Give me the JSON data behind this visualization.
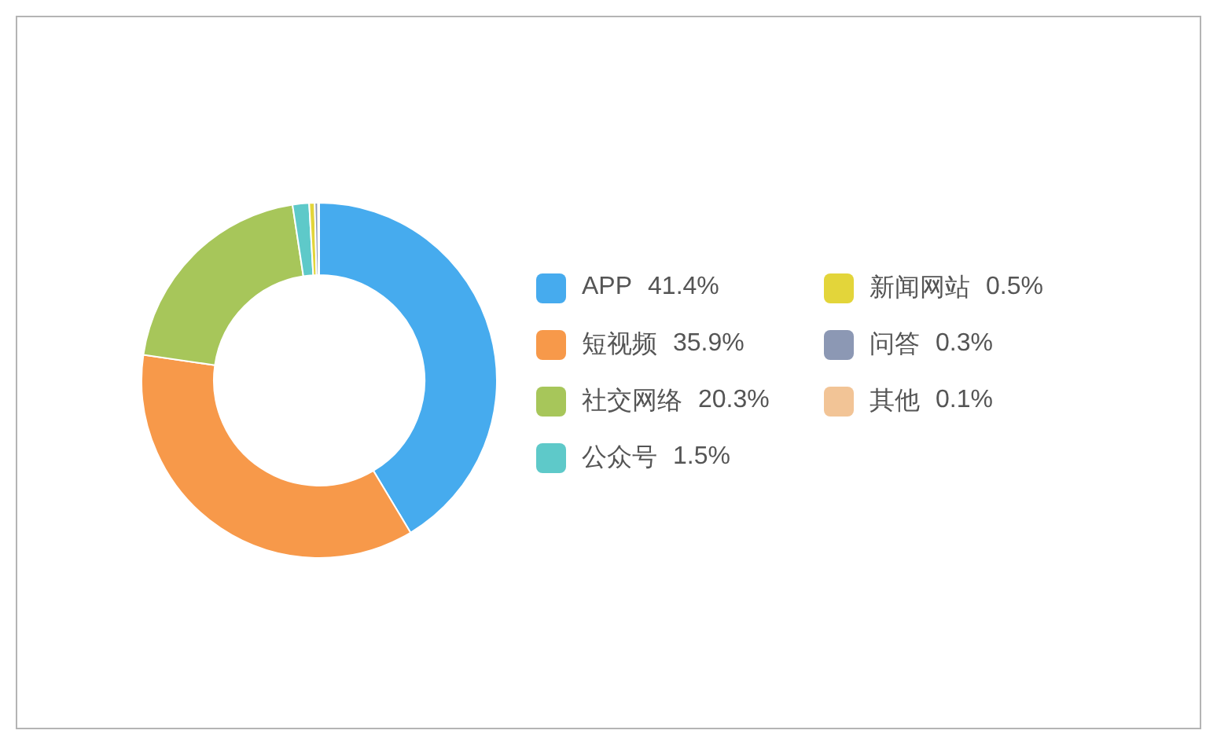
{
  "chart_data": {
    "type": "donut",
    "categories": [
      "APP",
      "短视频",
      "社交网络",
      "公众号",
      "新闻网站",
      "问答",
      "其他"
    ],
    "values": [
      41.4,
      35.9,
      20.3,
      1.5,
      0.5,
      0.3,
      0.1
    ],
    "value_labels": [
      "41.4%",
      "35.9%",
      "20.3%",
      "1.5%",
      "0.5%",
      "0.3%",
      "0.1%"
    ],
    "colors": [
      "#46abee",
      "#f7994a",
      "#a7c65a",
      "#5ec9c9",
      "#e3d53a",
      "#8c98b4",
      "#f2c496"
    ],
    "legend": "right"
  }
}
